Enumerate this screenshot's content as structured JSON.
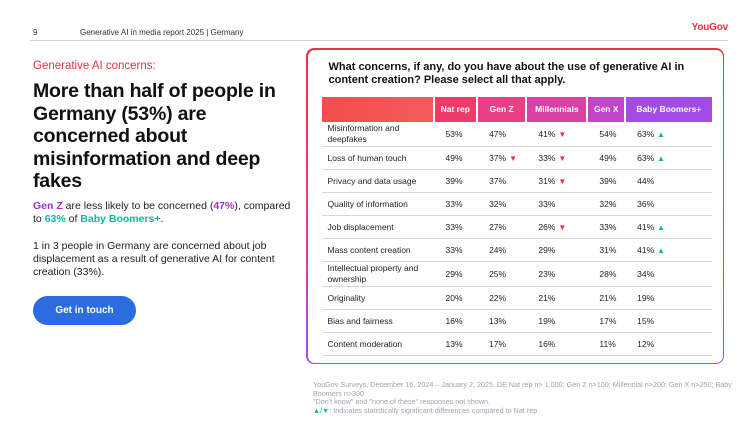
{
  "header": {
    "page_number": "9",
    "report_title": "Generative AI in media report 2025 | Germany",
    "logo": "YouGov"
  },
  "left": {
    "kicker": "Generative AI concerns:",
    "headline": "More than half of people in Germany (53%) are concerned about misinformation and deep fakes",
    "para1": {
      "genz": "Gen Z",
      "mid1": " are less likely to be concerned (",
      "pct_genz": "47%",
      "mid2": "), compared to ",
      "pct_boom": "63%",
      "mid3": " of ",
      "boom": "Baby Boomers+",
      "end": "."
    },
    "para2": "1 in 3 people in Germany are concerned about job displacement as a result of generative AI for content creation (33%).",
    "cta_label": "Get in touch"
  },
  "colors": {
    "accent_red": "#e8303f",
    "gen_z_purple": "#9b2fd8",
    "boomers_teal": "#16b5a0",
    "cta_blue": "#2d6be0",
    "up_arrow": "#16b5a0",
    "down_arrow": "#e8303f"
  },
  "card": {
    "question": "What concerns, if any, do you have about the use of generative AI in content creation? Please select all that apply.",
    "columns": [
      "Nat rep",
      "Gen Z",
      "Millennials",
      "Gen X",
      "Baby Boomers+"
    ],
    "rows": [
      {
        "label": "Misinformation and deepfakes",
        "values": [
          "53%",
          "47%",
          "41%",
          "54%",
          "63%"
        ],
        "flags": [
          "",
          "",
          "down",
          "",
          "up"
        ]
      },
      {
        "label": "Loss of human touch",
        "values": [
          "49%",
          "37%",
          "33%",
          "49%",
          "63%"
        ],
        "flags": [
          "",
          "down",
          "down",
          "",
          "up"
        ]
      },
      {
        "label": "Privacy and data usage",
        "values": [
          "39%",
          "37%",
          "31%",
          "39%",
          "44%"
        ],
        "flags": [
          "",
          "",
          "down",
          "",
          ""
        ]
      },
      {
        "label": "Quality of information",
        "values": [
          "33%",
          "32%",
          "33%",
          "32%",
          "36%"
        ],
        "flags": [
          "",
          "",
          "",
          "",
          ""
        ]
      },
      {
        "label": "Job displacement",
        "values": [
          "33%",
          "27%",
          "26%",
          "33%",
          "41%"
        ],
        "flags": [
          "",
          "",
          "down",
          "",
          "up"
        ]
      },
      {
        "label": "Mass content creation",
        "values": [
          "33%",
          "24%",
          "29%",
          "31%",
          "41%"
        ],
        "flags": [
          "",
          "",
          "",
          "",
          "up"
        ]
      },
      {
        "label": "Intellectual property and ownership",
        "values": [
          "29%",
          "25%",
          "23%",
          "28%",
          "34%"
        ],
        "flags": [
          "",
          "",
          "",
          "",
          ""
        ]
      },
      {
        "label": "Originality",
        "values": [
          "20%",
          "22%",
          "21%",
          "21%",
          "19%"
        ],
        "flags": [
          "",
          "",
          "",
          "",
          ""
        ]
      },
      {
        "label": "Bias and fairness",
        "values": [
          "16%",
          "13%",
          "19%",
          "17%",
          "15%"
        ],
        "flags": [
          "",
          "",
          "",
          "",
          ""
        ]
      },
      {
        "label": "Content moderation",
        "values": [
          "13%",
          "17%",
          "16%",
          "11%",
          "12%"
        ],
        "flags": [
          "",
          "",
          "",
          "",
          ""
        ]
      }
    ]
  },
  "footnote": {
    "line1": "YouGov Surveys, December 16, 2024 – January 2, 2025. DE Nat rep n> 1,000; Gen Z n>100; Millennial n>200; Gen X n>250; Baby Boomers n>300",
    "line2": "\"Don't know\" and \"none of these\" responses not shown.",
    "line3_arrows": "▲/▼",
    "line3_text": ": Indicates statistically significant differences compared to Nat rep"
  }
}
